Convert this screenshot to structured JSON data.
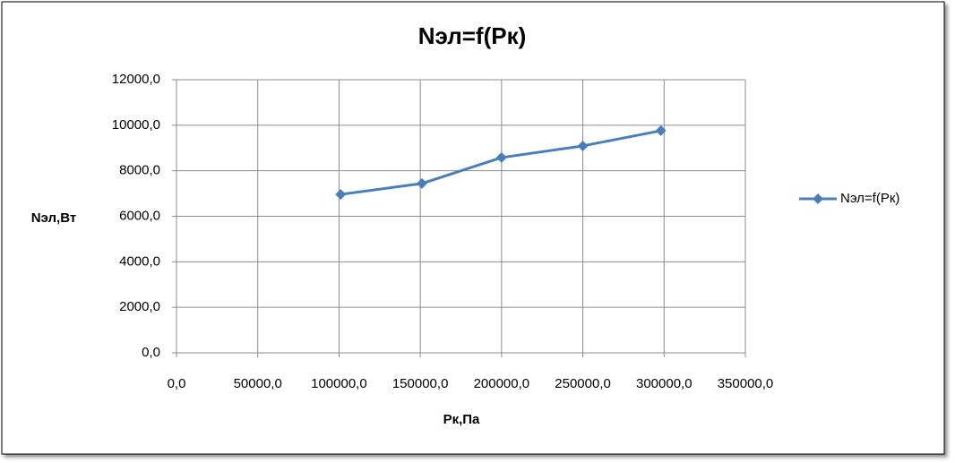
{
  "chart_data": {
    "type": "line",
    "title": "Nэл=f(Pк)",
    "x_label": "Pк,Па",
    "y_label": "Nэл,Вт",
    "x": [
      101000,
      151000,
      200000,
      250000,
      298000
    ],
    "series": [
      {
        "name": "Nэл=f(Pк)",
        "color": "#4a7ebb",
        "values": [
          6960,
          7440,
          8580,
          9090,
          9760
        ]
      }
    ],
    "xlim": [
      0,
      350000
    ],
    "xticks": [
      {
        "value": 0,
        "label": "0,0"
      },
      {
        "value": 50000,
        "label": "50000,0"
      },
      {
        "value": 100000,
        "label": "100000,0"
      },
      {
        "value": 150000,
        "label": "150000,0"
      },
      {
        "value": 200000,
        "label": "200000,0"
      },
      {
        "value": 250000,
        "label": "250000,0"
      },
      {
        "value": 300000,
        "label": "300000,0"
      },
      {
        "value": 350000,
        "label": "350000,0"
      }
    ],
    "ylim": [
      0,
      12000
    ],
    "yticks": [
      {
        "value": 0,
        "label": "0,0"
      },
      {
        "value": 2000,
        "label": "2000,0"
      },
      {
        "value": 4000,
        "label": "4000,0"
      },
      {
        "value": 6000,
        "label": "6000,0"
      },
      {
        "value": 8000,
        "label": "8000,0"
      },
      {
        "value": 10000,
        "label": "10000,0"
      },
      {
        "value": 12000,
        "label": "12000,0"
      }
    ],
    "grid": true,
    "legend": "right"
  }
}
